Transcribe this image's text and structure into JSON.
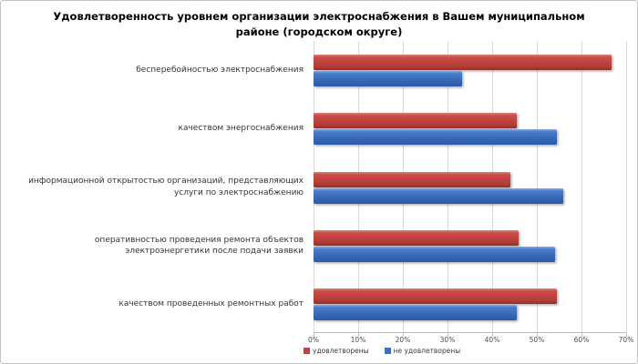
{
  "window": {
    "background_color": "#ffffff",
    "border_color": "#c3c3c3"
  },
  "chart_data": {
    "type": "bar",
    "orientation": "horizontal",
    "title": "Удовлетворенность уровнем организации электроснабжения в Вашем муниципальном районе (городском округе)",
    "categories": [
      "бесперебойностью электроснабжения",
      "качеством энергоснабжения",
      "информационной открытостью организаций, представляющих услуги по электроснабжению",
      "оперативностью проведения ремонта объектов электроэнергетики после подачи заявки",
      "качеством проведенных ремонтных работ"
    ],
    "series": [
      {
        "name": "удовлетворены",
        "color": "#bf4540",
        "values": [
          66.7,
          45.5,
          44.0,
          46.0,
          54.5
        ]
      },
      {
        "name": "не удовлетворены",
        "color": "#3b70bd",
        "values": [
          33.3,
          54.5,
          56.0,
          54.0,
          45.5
        ]
      }
    ],
    "value_unit": "%",
    "xlim": [
      0,
      70
    ],
    "x_tick_labels": [
      "0%",
      "10%",
      "20%",
      "30%",
      "40%",
      "50%",
      "60%",
      "70%"
    ],
    "grid": true,
    "gridline_color": "#d9d9d9",
    "legend_position": "bottom"
  }
}
